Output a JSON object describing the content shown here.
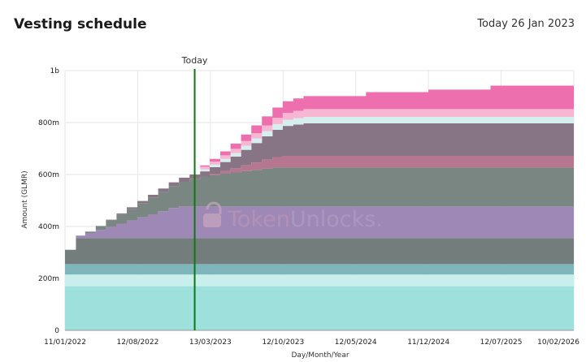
{
  "header": {
    "title": "Vesting schedule",
    "today": "Today 26 Jan 2023"
  },
  "watermark": {
    "text_a": "Token",
    "text_b": "Unlocks."
  },
  "chart_data": {
    "type": "area",
    "stacked": true,
    "xlabel": "Day/Month/Year",
    "ylabel": "Amount (GLMR)",
    "ylim": [
      0,
      1000
    ],
    "y_unit": "m",
    "yticks": [
      {
        "value": 0,
        "label": "0"
      },
      {
        "value": 200,
        "label": "200m"
      },
      {
        "value": 400,
        "label": "400m"
      },
      {
        "value": 600,
        "label": "600m"
      },
      {
        "value": 800,
        "label": "800m"
      },
      {
        "value": 1000,
        "label": "1b"
      }
    ],
    "xlim": [
      "2022-01-11",
      "2026-02-10"
    ],
    "xticks": [
      {
        "value": "2022-01-11",
        "label": "11/01/2022"
      },
      {
        "value": "2022-08-12",
        "label": "12/08/2022"
      },
      {
        "value": "2023-03-13",
        "label": "13/03/2023"
      },
      {
        "value": "2023-10-12",
        "label": "12/10/2023"
      },
      {
        "value": "2024-05-12",
        "label": "12/05/2024"
      },
      {
        "value": "2024-12-11",
        "label": "11/12/2024"
      },
      {
        "value": "2025-07-12",
        "label": "12/07/2025"
      },
      {
        "value": "2026-02-10",
        "label": "10/02/2026"
      }
    ],
    "grid": true,
    "today_marker": {
      "x": "2023-01-26",
      "label": "Today",
      "color": "#0a7a0a"
    },
    "x": [
      "2022-01-11",
      "2022-02-11",
      "2022-02-12",
      "2022-03-11",
      "2022-04-11",
      "2022-05-11",
      "2022-06-11",
      "2022-07-11",
      "2022-08-11",
      "2022-09-11",
      "2022-10-11",
      "2022-11-11",
      "2022-12-11",
      "2023-01-11",
      "2023-02-11",
      "2023-03-11",
      "2023-04-11",
      "2023-05-11",
      "2023-06-11",
      "2023-07-11",
      "2023-08-11",
      "2023-09-11",
      "2023-10-11",
      "2023-11-11",
      "2023-12-11",
      "2024-06-11",
      "2024-12-11",
      "2025-06-11",
      "2026-02-10"
    ],
    "series": [
      {
        "color": "#9ee0dc",
        "values": [
          170,
          170,
          170,
          170,
          170,
          170,
          170,
          170,
          170,
          170,
          170,
          170,
          170,
          170,
          170,
          170,
          170,
          170,
          170,
          170,
          170,
          170,
          170,
          170,
          170,
          170,
          170,
          170,
          170
        ]
      },
      {
        "color": "#c9efed",
        "values": [
          45,
          45,
          45,
          45,
          45,
          45,
          45,
          45,
          45,
          45,
          45,
          45,
          45,
          45,
          45,
          45,
          45,
          45,
          45,
          45,
          45,
          45,
          45,
          45,
          45,
          45,
          45,
          45,
          45
        ]
      },
      {
        "color": "#7fb6bb",
        "values": [
          40,
          40,
          40,
          40,
          40,
          40,
          40,
          40,
          40,
          40,
          40,
          40,
          40,
          40,
          40,
          40,
          40,
          40,
          40,
          40,
          40,
          40,
          40,
          40,
          40,
          40,
          40,
          40,
          40
        ]
      },
      {
        "color": "#727d7c",
        "values": [
          55,
          55,
          100,
          100,
          100,
          100,
          100,
          100,
          100,
          100,
          100,
          100,
          100,
          100,
          100,
          100,
          100,
          100,
          100,
          100,
          100,
          100,
          100,
          100,
          100,
          100,
          100,
          100,
          100
        ]
      },
      {
        "color": "#9e89b6",
        "values": [
          0,
          0,
          10,
          20,
          32,
          44,
          56,
          68,
          80,
          92,
          104,
          116,
          122,
          122,
          122,
          122,
          122,
          122,
          122,
          122,
          122,
          122,
          122,
          122,
          122,
          122,
          122,
          122,
          122
        ]
      },
      {
        "color": "#7a8682",
        "values": [
          0,
          0,
          0,
          5,
          15,
          25,
          35,
          45,
          55,
          65,
          75,
          85,
          95,
          105,
          115,
          121,
          126,
          131,
          136,
          141,
          146,
          150,
          150,
          150,
          150,
          150,
          150,
          150,
          150
        ]
      },
      {
        "color": "#b7768f",
        "values": [
          0,
          0,
          0,
          0,
          0,
          0,
          0,
          0,
          0,
          0,
          0,
          0,
          0,
          0,
          0,
          5,
          10,
          16,
          22,
          28,
          34,
          40,
          45,
          45,
          45,
          45,
          45,
          45,
          45
        ]
      },
      {
        "color": "#8c7590",
        "values": [
          0,
          0,
          0,
          0,
          0,
          0,
          0,
          0,
          0,
          0,
          0,
          0,
          0,
          0,
          0,
          0,
          0,
          0,
          0,
          0,
          0,
          0,
          0,
          0,
          0,
          0,
          0,
          0,
          0
        ]
      },
      {
        "color": "#877585",
        "values": [
          0,
          0,
          0,
          0,
          0,
          2,
          4,
          6,
          8,
          10,
          12,
          14,
          16,
          18,
          20,
          25,
          35,
          45,
          60,
          75,
          90,
          105,
          115,
          120,
          125,
          125,
          125,
          125,
          125
        ]
      },
      {
        "color": "#d6eeee",
        "values": [
          0,
          0,
          0,
          0,
          0,
          0,
          0,
          0,
          0,
          0,
          0,
          0,
          0,
          0,
          8,
          10,
          12,
          14,
          16,
          18,
          20,
          22,
          24,
          25,
          25,
          25,
          25,
          25,
          25
        ]
      },
      {
        "color": "#f7b7d3",
        "values": [
          0,
          0,
          0,
          0,
          0,
          0,
          0,
          0,
          0,
          0,
          0,
          0,
          0,
          0,
          10,
          12,
          14,
          16,
          18,
          20,
          22,
          24,
          26,
          28,
          30,
          30,
          30,
          30,
          30
        ]
      },
      {
        "color": "#ed6fae",
        "values": [
          0,
          0,
          0,
          0,
          0,
          0,
          0,
          0,
          0,
          0,
          0,
          0,
          0,
          0,
          5,
          10,
          15,
          20,
          25,
          30,
          35,
          40,
          45,
          48,
          50,
          65,
          75,
          90,
          100
        ]
      }
    ]
  }
}
